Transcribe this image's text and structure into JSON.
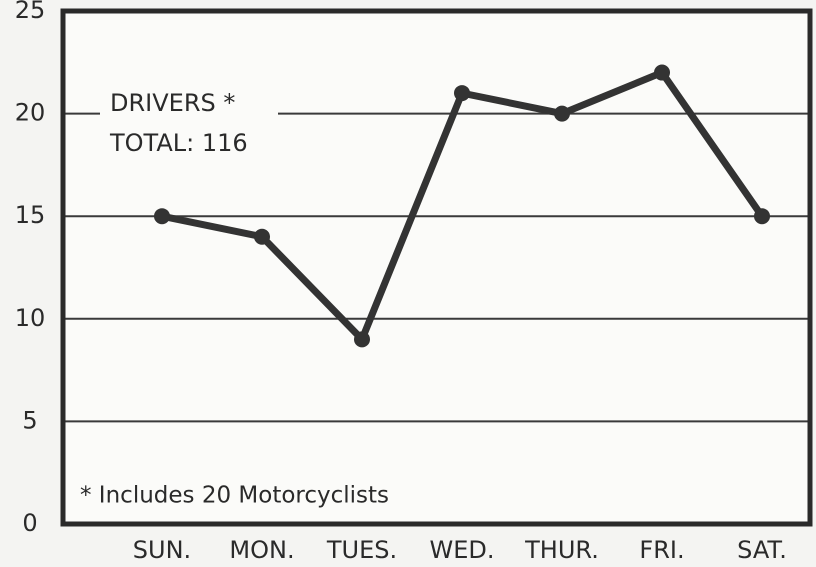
{
  "chart_data": {
    "type": "line",
    "annotations": [
      "DRIVERS *",
      "TOTAL: 116",
      "* Includes 20 Motorcyclists"
    ],
    "categories": [
      "SUN.",
      "MON.",
      "TUES.",
      "WED.",
      "THUR.",
      "FRI.",
      "SAT."
    ],
    "series": [
      {
        "color": "#333333",
        "values": [
          15,
          14,
          9,
          21,
          20,
          22,
          15
        ]
      }
    ],
    "ylim": [
      0,
      25
    ],
    "yticks": [
      0,
      5,
      10,
      15,
      20,
      25
    ],
    "grid": true
  }
}
